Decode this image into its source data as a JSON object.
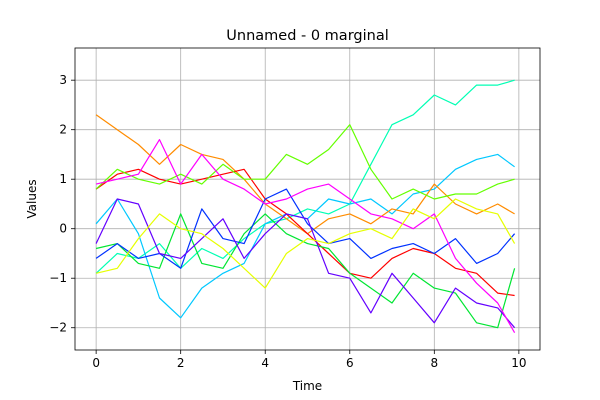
{
  "chart_data": {
    "type": "line",
    "title": "Unnamed - 0 marginal",
    "xlabel": "Time",
    "ylabel": "Values",
    "xlim": [
      -0.5,
      10.5
    ],
    "ylim": [
      -2.45,
      3.65
    ],
    "xticks": [
      0,
      2,
      4,
      6,
      8,
      10
    ],
    "yticks": [
      -2,
      -1,
      0,
      1,
      2,
      3
    ],
    "grid": true,
    "legend": "none",
    "x": [
      0,
      0.5,
      1,
      1.5,
      2,
      2.5,
      3,
      3.5,
      4,
      4.5,
      5,
      5.5,
      6,
      6.5,
      7,
      7.5,
      8,
      8.5,
      9,
      9.5,
      9.9
    ],
    "series": [
      {
        "color": "#00ffb4",
        "values": [
          -0.9,
          -0.5,
          -0.6,
          -0.3,
          -0.8,
          -0.4,
          -0.6,
          -0.2,
          0.1,
          0.2,
          0.4,
          0.3,
          0.5,
          1.3,
          2.1,
          2.3,
          2.7,
          2.5,
          2.9,
          2.9,
          3.0
        ]
      },
      {
        "color": "#00c8ff",
        "values": [
          0.1,
          0.6,
          -0.1,
          -1.4,
          -1.8,
          -1.2,
          -0.9,
          -0.7,
          0.1,
          0.3,
          0.2,
          0.6,
          0.5,
          0.6,
          0.3,
          0.7,
          0.8,
          1.2,
          1.4,
          1.5,
          1.25
        ]
      },
      {
        "color": "#ff8c00",
        "values": [
          2.3,
          2.0,
          1.7,
          1.3,
          1.7,
          1.5,
          1.4,
          1.0,
          0.5,
          0.2,
          -0.1,
          0.2,
          0.3,
          0.1,
          0.4,
          0.3,
          0.9,
          0.5,
          0.3,
          0.5,
          0.3
        ]
      },
      {
        "color": "#ff0000",
        "values": [
          0.8,
          1.1,
          1.2,
          1.0,
          0.9,
          1.0,
          1.1,
          1.2,
          0.6,
          0.3,
          -0.1,
          -0.5,
          -0.9,
          -1.0,
          -0.6,
          -0.4,
          -0.5,
          -0.8,
          -0.9,
          -1.3,
          -1.35
        ]
      },
      {
        "color": "#64ff00",
        "values": [
          0.8,
          1.2,
          1.0,
          0.9,
          1.1,
          0.9,
          1.3,
          1.0,
          1.0,
          1.5,
          1.3,
          1.6,
          2.1,
          1.2,
          0.6,
          0.8,
          0.6,
          0.7,
          0.7,
          0.9,
          1.0
        ]
      },
      {
        "color": "#00e632",
        "values": [
          -0.4,
          -0.3,
          -0.7,
          -0.8,
          0.3,
          -0.7,
          -0.8,
          -0.1,
          0.3,
          -0.1,
          -0.3,
          -0.4,
          -0.9,
          -1.2,
          -1.5,
          -0.9,
          -1.2,
          -1.3,
          -1.9,
          -2.0,
          -0.8
        ]
      },
      {
        "color": "#0032ff",
        "values": [
          -0.6,
          -0.3,
          -0.6,
          -0.5,
          -0.8,
          0.4,
          -0.2,
          -0.3,
          0.6,
          0.8,
          0.1,
          -0.3,
          -0.2,
          -0.6,
          -0.4,
          -0.3,
          -0.5,
          -0.2,
          -0.7,
          -0.5,
          -0.1
        ]
      },
      {
        "color": "#6400ff",
        "values": [
          -0.3,
          0.6,
          0.5,
          -0.5,
          -0.6,
          -0.2,
          0.2,
          -0.6,
          -0.1,
          0.3,
          0.2,
          -0.9,
          -1.0,
          -1.7,
          -0.9,
          -1.4,
          -1.9,
          -1.2,
          -1.5,
          -1.6,
          -2.0
        ]
      },
      {
        "color": "#ff00ff",
        "values": [
          0.9,
          1.0,
          1.1,
          1.8,
          0.9,
          1.5,
          1.0,
          0.8,
          0.5,
          0.6,
          0.8,
          0.9,
          0.6,
          0.3,
          0.2,
          0.0,
          0.3,
          -0.6,
          -1.1,
          -1.5,
          -2.1
        ]
      },
      {
        "color": "#e6ff00",
        "values": [
          -0.9,
          -0.8,
          -0.2,
          0.3,
          0.0,
          -0.1,
          -0.4,
          -0.8,
          -1.2,
          -0.5,
          -0.2,
          -0.3,
          -0.1,
          0.0,
          -0.2,
          0.4,
          0.2,
          0.6,
          0.4,
          0.3,
          -0.3
        ]
      }
    ]
  }
}
